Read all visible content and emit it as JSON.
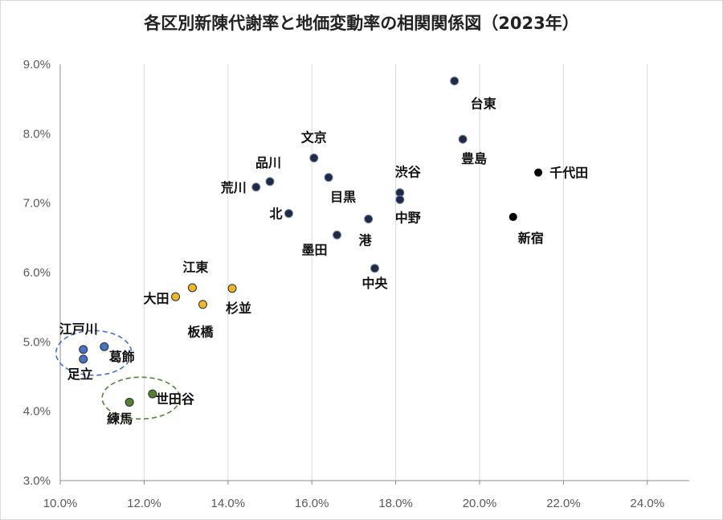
{
  "chart_data": {
    "type": "scatter",
    "title": "各区別新陳代謝率と地価変動率の相関関係図（2023年）",
    "xlabel": "",
    "ylabel": "",
    "xlim": [
      0.1,
      0.25
    ],
    "ylim": [
      0.03,
      0.09
    ],
    "x_ticks": [
      "10.0%",
      "12.0%",
      "14.0%",
      "16.0%",
      "18.0%",
      "20.0%",
      "22.0%",
      "24.0%"
    ],
    "y_ticks": [
      "3.0%",
      "4.0%",
      "5.0%",
      "6.0%",
      "7.0%",
      "8.0%",
      "9.0%"
    ],
    "grid": "vertical",
    "colors": {
      "navy": "#1f2a44",
      "black": "#000000",
      "gold": "#f2b61f",
      "blue": "#4472c4",
      "green": "#548235"
    },
    "points": [
      {
        "label": "台東",
        "x": 0.194,
        "y": 0.0876,
        "color": "navy"
      },
      {
        "label": "豊島",
        "x": 0.196,
        "y": 0.0792,
        "color": "navy"
      },
      {
        "label": "千代田",
        "x": 0.214,
        "y": 0.0744,
        "color": "black"
      },
      {
        "label": "新宿",
        "x": 0.208,
        "y": 0.068,
        "color": "black"
      },
      {
        "label": "文京",
        "x": 0.1605,
        "y": 0.0765,
        "color": "navy"
      },
      {
        "label": "目黒",
        "x": 0.164,
        "y": 0.0737,
        "color": "navy"
      },
      {
        "label": "品川",
        "x": 0.15,
        "y": 0.0731,
        "color": "navy"
      },
      {
        "label": "荒川",
        "x": 0.1467,
        "y": 0.0723,
        "color": "navy"
      },
      {
        "label": "渋谷",
        "x": 0.181,
        "y": 0.0715,
        "color": "navy"
      },
      {
        "label": "中野",
        "x": 0.181,
        "y": 0.0705,
        "color": "navy"
      },
      {
        "label": "北",
        "x": 0.1545,
        "y": 0.0685,
        "color": "navy"
      },
      {
        "label": "港",
        "x": 0.1735,
        "y": 0.0677,
        "color": "navy"
      },
      {
        "label": "墨田",
        "x": 0.166,
        "y": 0.0654,
        "color": "navy"
      },
      {
        "label": "中央",
        "x": 0.175,
        "y": 0.0606,
        "color": "navy"
      },
      {
        "label": "江東",
        "x": 0.1315,
        "y": 0.0578,
        "color": "gold"
      },
      {
        "label": "杉並",
        "x": 0.141,
        "y": 0.0577,
        "color": "gold"
      },
      {
        "label": "大田",
        "x": 0.1275,
        "y": 0.0565,
        "color": "gold"
      },
      {
        "label": "板橋",
        "x": 0.134,
        "y": 0.0554,
        "color": "gold"
      },
      {
        "label": "江戸川",
        "x": 0.1055,
        "y": 0.0489,
        "color": "blue"
      },
      {
        "label": "葛飾",
        "x": 0.1105,
        "y": 0.0493,
        "color": "blue"
      },
      {
        "label": "足立",
        "x": 0.1055,
        "y": 0.0475,
        "color": "blue"
      },
      {
        "label": "練馬",
        "x": 0.1165,
        "y": 0.0413,
        "color": "green"
      },
      {
        "label": "世田谷",
        "x": 0.122,
        "y": 0.0425,
        "color": "green"
      }
    ],
    "groups": [
      {
        "color": "blue",
        "members": [
          "江戸川",
          "葛飾",
          "足立"
        ]
      },
      {
        "color": "green",
        "members": [
          "練馬",
          "世田谷"
        ]
      }
    ]
  }
}
